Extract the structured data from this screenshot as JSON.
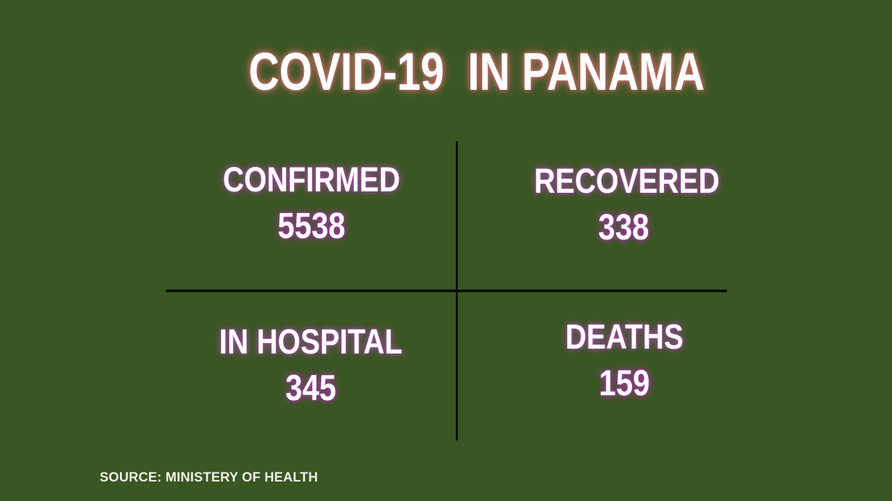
{
  "title": "COVID-19  IN PANAMA",
  "quadrants": [
    {
      "label": "CONFIRMED",
      "value": "5538"
    },
    {
      "label": "RECOVERED",
      "value": "338"
    },
    {
      "label": "IN HOSPITAL",
      "value": "345"
    },
    {
      "label": "DEATHS",
      "value": "159"
    }
  ],
  "source": "SOURCE: MINISTERY OF HEALTH",
  "colors": {
    "background": "#3a5622",
    "line": "#0d0d0d",
    "text": "#ffffff",
    "glow_title": "#c96f6f",
    "glow_stat": "#9a4b9e",
    "glow_value": "#a238a6",
    "source_text": "#f0f0e8"
  },
  "chart_data": {
    "type": "table",
    "title": "COVID-19  IN PANAMA",
    "categories": [
      "CONFIRMED",
      "RECOVERED",
      "IN HOSPITAL",
      "DEATHS"
    ],
    "values": [
      5538,
      338,
      345,
      159
    ],
    "source": "SOURCE: MINISTERY OF HEALTH",
    "layout": "2x2 quadrant grid divided by black cross lines",
    "legend_position": "none",
    "grid": false
  }
}
